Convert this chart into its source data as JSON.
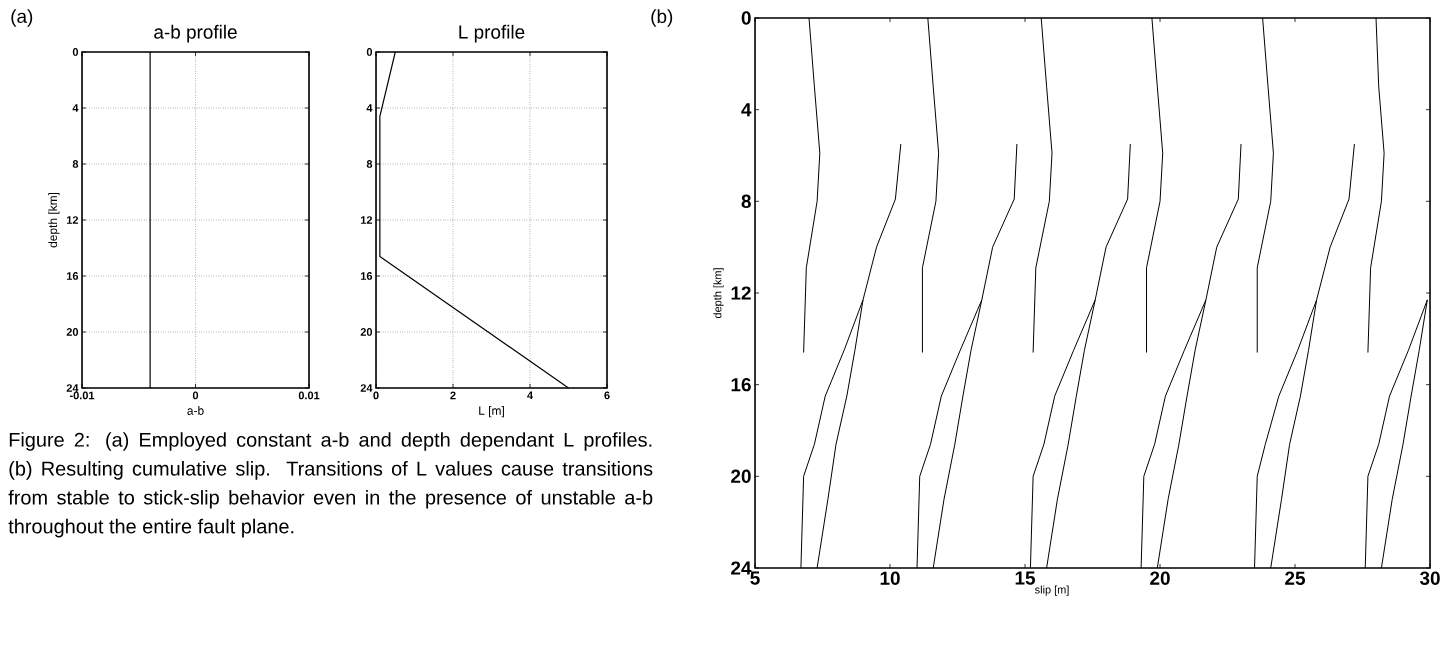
{
  "chart_data": [
    {
      "type": "line",
      "title": "a-b profile",
      "xlabel": "a-b",
      "ylabel": "depth [km]",
      "xlim": [
        -0.01,
        0.01
      ],
      "xticks": [
        -0.01,
        0,
        0.01
      ],
      "ylim": [
        24,
        0
      ],
      "yticks": [
        0,
        4,
        8,
        12,
        16,
        20,
        24
      ],
      "grid": true,
      "marker": "none",
      "line_style": "solid",
      "annotations": [
        "(a)",
        "Figure 2: (a) Employed constant a-b and depth dependant L profiles. (b) Resulting cumulative slip. Transitions of L values cause transitions from stable to stick-slip behavior even in the presence of unstable a-b throughout the entire fault plane."
      ],
      "series": [
        {
          "color": "#000000",
          "x": [
            -0.004,
            -0.004
          ],
          "values": [
            0,
            24
          ]
        }
      ]
    },
    {
      "type": "line",
      "title": "L profile",
      "xlabel": "L  [m]",
      "xlim": [
        0,
        6
      ],
      "xticks": [
        0,
        2,
        4,
        6
      ],
      "ylim": [
        24,
        0
      ],
      "yticks": [
        0,
        4,
        8,
        12,
        16,
        20,
        24
      ],
      "grid": true,
      "marker": "none",
      "line_style": "solid",
      "series": [
        {
          "color": "#000000",
          "x": [
            0.5,
            0.1,
            0.1,
            5
          ],
          "values": [
            0,
            4.6,
            14.6,
            24
          ]
        }
      ]
    },
    {
      "type": "line",
      "xlabel": "slip [m]",
      "ylabel": "depth [km]",
      "xlim": [
        5,
        30
      ],
      "xticks": [
        5,
        10,
        15,
        20,
        25,
        30
      ],
      "ylim": [
        24,
        0
      ],
      "yticks": [
        0,
        4,
        8,
        12,
        16,
        20,
        24
      ],
      "marker": "none",
      "line_style": "solid",
      "annotations": [
        "(b)"
      ],
      "series": [
        {
          "color": "#000000",
          "x": [
            7.0,
            7.2,
            7.4,
            7.3,
            6.9,
            6.8
          ],
          "values": [
            0,
            3,
            5.9,
            8,
            10.9,
            14.6
          ]
        },
        {
          "color": "#000000",
          "x": [
            6.7,
            6.8,
            7.2,
            7.6,
            8.3,
            9.0
          ],
          "values": [
            24,
            20,
            18.6,
            16.5,
            14.5,
            12.3
          ]
        },
        {
          "color": "#000000",
          "x": [
            7.3,
            7.7,
            8.0,
            8.4,
            8.7,
            9.0,
            9.5,
            10.2,
            10.4
          ],
          "values": [
            24,
            21,
            18.6,
            16.5,
            14.5,
            12.3,
            10,
            7.9,
            5.5
          ]
        },
        {
          "color": "#000000",
          "x": [
            11.4,
            11.6,
            11.8,
            11.7,
            11.2,
            11.2
          ],
          "values": [
            0,
            3,
            5.9,
            8,
            10.9,
            14.6
          ]
        },
        {
          "color": "#000000",
          "x": [
            11.0,
            11.1,
            11.5,
            11.9,
            12.6,
            13.4
          ],
          "values": [
            24,
            20,
            18.6,
            16.5,
            14.5,
            12.3
          ]
        },
        {
          "color": "#000000",
          "x": [
            11.6,
            12.0,
            12.4,
            12.7,
            13.0,
            13.4,
            13.8,
            14.6,
            14.7
          ],
          "values": [
            24,
            21,
            18.6,
            16.5,
            14.5,
            12.3,
            10,
            7.9,
            5.5
          ]
        },
        {
          "color": "#000000",
          "x": [
            15.6,
            15.8,
            16.0,
            15.9,
            15.4,
            15.3
          ],
          "values": [
            0,
            3,
            5.9,
            8,
            10.9,
            14.6
          ]
        },
        {
          "color": "#000000",
          "x": [
            15.2,
            15.3,
            15.7,
            16.1,
            16.8,
            17.6
          ],
          "values": [
            24,
            20,
            18.6,
            16.5,
            14.5,
            12.3
          ]
        },
        {
          "color": "#000000",
          "x": [
            15.8,
            16.2,
            16.6,
            16.9,
            17.2,
            17.6,
            18.0,
            18.8,
            18.9
          ],
          "values": [
            24,
            21,
            18.6,
            16.5,
            14.5,
            12.3,
            10,
            7.9,
            5.5
          ]
        },
        {
          "color": "#000000",
          "x": [
            19.7,
            19.9,
            20.1,
            20.0,
            19.5,
            19.5
          ],
          "values": [
            0,
            3,
            5.9,
            8,
            10.9,
            14.6
          ]
        },
        {
          "color": "#000000",
          "x": [
            19.3,
            19.4,
            19.8,
            20.2,
            20.9,
            21.7
          ],
          "values": [
            24,
            20,
            18.6,
            16.5,
            14.5,
            12.3
          ]
        },
        {
          "color": "#000000",
          "x": [
            19.9,
            20.3,
            20.7,
            21.0,
            21.3,
            21.7,
            22.1,
            22.9,
            23.0
          ],
          "values": [
            24,
            21,
            18.6,
            16.5,
            14.5,
            12.3,
            10,
            7.9,
            5.5
          ]
        },
        {
          "color": "#000000",
          "x": [
            23.8,
            24.0,
            24.2,
            24.1,
            23.6,
            23.6
          ],
          "values": [
            0,
            3,
            5.9,
            8,
            10.9,
            14.6
          ]
        },
        {
          "color": "#000000",
          "x": [
            23.5,
            23.6,
            23.9,
            24.4,
            25.1,
            25.8
          ],
          "values": [
            24,
            20,
            18.6,
            16.5,
            14.5,
            12.3
          ]
        },
        {
          "color": "#000000",
          "x": [
            24.1,
            24.5,
            24.8,
            25.2,
            25.5,
            25.8,
            26.3,
            27.0,
            27.2
          ],
          "values": [
            24,
            21,
            18.6,
            16.5,
            14.5,
            12.3,
            10,
            7.9,
            5.5
          ]
        },
        {
          "color": "#000000",
          "x": [
            28.0,
            28.1,
            28.3,
            28.2,
            27.8,
            27.7
          ],
          "values": [
            0,
            3,
            5.9,
            8,
            10.9,
            14.6
          ]
        },
        {
          "color": "#000000",
          "x": [
            27.6,
            27.7,
            28.1,
            28.5,
            29.2,
            29.9
          ],
          "values": [
            24,
            20,
            18.6,
            16.5,
            14.5,
            12.3
          ]
        },
        {
          "color": "#000000",
          "x": [
            28.2,
            28.6,
            29.0,
            29.3,
            29.6,
            29.9
          ],
          "values": [
            24,
            21,
            18.6,
            16.5,
            14.5,
            12.3
          ]
        }
      ]
    }
  ]
}
